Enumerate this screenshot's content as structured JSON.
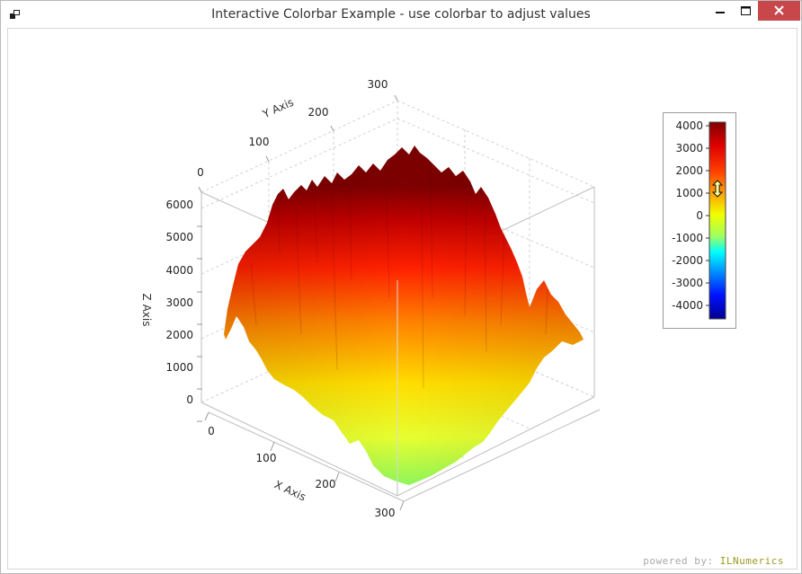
{
  "window": {
    "title": "Interactive Colorbar Example - use colorbar to adjust values",
    "icon": "app-icon",
    "buttons": [
      "minimize-icon",
      "maximize-icon",
      "close-icon"
    ]
  },
  "footer": {
    "powered_by_label": "powered by:",
    "powered_by_brand": "ILNumerics"
  },
  "chart_data": {
    "type": "surface",
    "title": "",
    "x_axis": {
      "label": "X Axis",
      "ticks": [
        "0",
        "100",
        "200",
        "300"
      ],
      "range": [
        0,
        300
      ]
    },
    "y_axis": {
      "label": "Y Axis",
      "ticks": [
        "0",
        "100",
        "200",
        "300"
      ],
      "range": [
        0,
        300
      ]
    },
    "z_axis": {
      "label": "Z Axis",
      "ticks": [
        "0",
        "1000",
        "2000",
        "3000",
        "4000",
        "5000",
        "6000"
      ],
      "range": [
        0,
        6000
      ]
    },
    "grid": true,
    "colorbar": {
      "placement": "right",
      "ticks": [
        "4000",
        "3000",
        "2000",
        "1000",
        "0",
        "-1000",
        "-2000",
        "-3000",
        "-4000"
      ],
      "range": [
        -4300,
        4300
      ],
      "marker_value": 1200,
      "colors": [
        "#800000",
        "#ff0000",
        "#ffff00",
        "#00ffff",
        "#0000ff",
        "#000080"
      ]
    },
    "surface_colors": [
      "#c8ff40",
      "#ffff00",
      "#ff8000",
      "#ff0000",
      "#800000"
    ]
  }
}
